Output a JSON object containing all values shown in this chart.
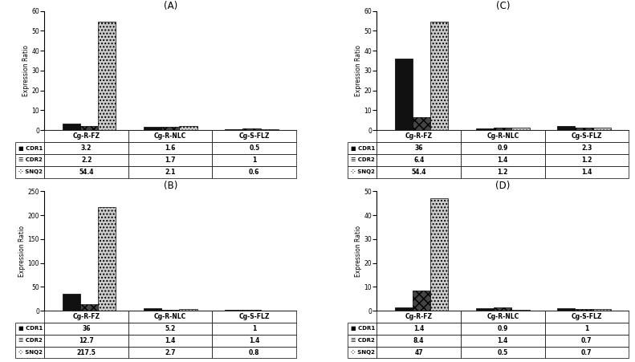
{
  "panels": [
    {
      "label": "(A)",
      "groups": [
        "Cg-R-FZ",
        "Cg-R-NLC",
        "Cg-S-FLZ"
      ],
      "CDR1": [
        3.2,
        1.6,
        0.5
      ],
      "CDR2": [
        2.2,
        1.7,
        1.0
      ],
      "SNQ2": [
        54.4,
        2.1,
        0.6
      ],
      "ylim": [
        0,
        60
      ],
      "yticks": [
        0,
        10,
        20,
        30,
        40,
        50,
        60
      ],
      "table_CDR1": [
        "3.2",
        "1.6",
        "0.5"
      ],
      "table_CDR2": [
        "2.2",
        "1.7",
        "1"
      ],
      "table_SNQ2": [
        "54.4",
        "2.1",
        "0.6"
      ]
    },
    {
      "label": "(B)",
      "groups": [
        "Cg-R-FZ",
        "Cg-R-NLC",
        "Cg-S-FLZ"
      ],
      "CDR1": [
        36,
        5.2,
        1.0
      ],
      "CDR2": [
        12.7,
        1.4,
        1.4
      ],
      "SNQ2": [
        217.5,
        2.7,
        0.8
      ],
      "ylim": [
        0,
        250
      ],
      "yticks": [
        0,
        50,
        100,
        150,
        200,
        250
      ],
      "table_CDR1": [
        "36",
        "5.2",
        "1"
      ],
      "table_CDR2": [
        "12.7",
        "1.4",
        "1.4"
      ],
      "table_SNQ2": [
        "217.5",
        "2.7",
        "0.8"
      ]
    },
    {
      "label": "(C)",
      "groups": [
        "Cg-R-FZ",
        "Cg-R-NLC",
        "Cg-S-FLZ"
      ],
      "CDR1": [
        36,
        0.9,
        2.3
      ],
      "CDR2": [
        6.4,
        1.4,
        1.2
      ],
      "SNQ2": [
        54.4,
        1.2,
        1.4
      ],
      "ylim": [
        0,
        60
      ],
      "yticks": [
        0,
        10,
        20,
        30,
        40,
        50,
        60
      ],
      "table_CDR1": [
        "36",
        "0.9",
        "2.3"
      ],
      "table_CDR2": [
        "6.4",
        "1.4",
        "1.2"
      ],
      "table_SNQ2": [
        "54.4",
        "1.2",
        "1.4"
      ]
    },
    {
      "label": "(D)",
      "groups": [
        "Cg-R-FZ",
        "Cg-R-NLC",
        "Cg-S-FLZ"
      ],
      "CDR1": [
        1.4,
        0.9,
        1.0
      ],
      "CDR2": [
        8.4,
        1.4,
        0.7
      ],
      "SNQ2": [
        47,
        0.5,
        0.7
      ],
      "ylim": [
        0,
        50
      ],
      "yticks": [
        0,
        10,
        20,
        30,
        40,
        50
      ],
      "table_CDR1": [
        "1.4",
        "0.9",
        "1"
      ],
      "table_CDR2": [
        "8.4",
        "1.4",
        "0.7"
      ],
      "table_SNQ2": [
        "47",
        "0.5",
        "0.7"
      ]
    }
  ],
  "bar_width": 0.22,
  "ylabel": "Expression Ratio",
  "background": "#ffffff"
}
